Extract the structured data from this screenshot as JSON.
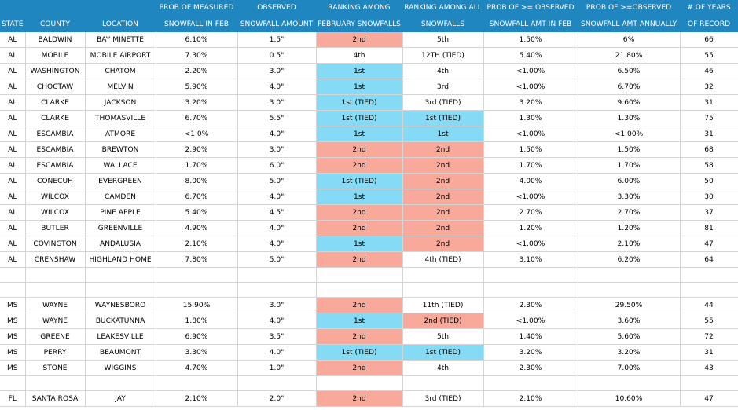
{
  "colors": {
    "header_bg": "#1f86c0",
    "header_text": "#ffffff",
    "salmon": "#f9a99a",
    "blue": "#85dbf6",
    "grid": "#d4d4d4"
  },
  "header_row1": [
    "",
    "",
    "",
    "PROB OF MEASURED",
    "OBSERVED",
    "RANKING AMONG",
    "RANKING AMONG ALL",
    "PROB OF >= OBSERVED",
    "PROB OF >=OBSERVED",
    "# OF YEARS"
  ],
  "header_row2": [
    "STATE",
    "COUNTY",
    "LOCATION",
    "SNOWFALL IN FEB",
    "SNOWFALL AMOUNT",
    "FEBRUARY SNOWFALLS",
    "SNOWFALLS",
    "SNOWFALL AMT IN FEB",
    "SNOWFALL AMT ANNUALLY",
    "OF RECORD"
  ],
  "rows": [
    {
      "blank": false,
      "cells": [
        "AL",
        "BALDWIN",
        "BAY MINETTE",
        "6.10%",
        "1.5\"",
        "2nd",
        "5th",
        "1.50%",
        "6%",
        "66"
      ],
      "feb_hl": "salmon",
      "all_hl": ""
    },
    {
      "blank": false,
      "cells": [
        "AL",
        "MOBILE",
        "MOBILE AIRPORT",
        "7.30%",
        "0.5\"",
        "4th",
        "12TH (TIED)",
        "5.40%",
        "21.80%",
        "55"
      ],
      "feb_hl": "",
      "all_hl": ""
    },
    {
      "blank": false,
      "cells": [
        "AL",
        "WASHINGTON",
        "CHATOM",
        "2.20%",
        "3.0\"",
        "1st",
        "4th",
        "<1.00%",
        "6.50%",
        "46"
      ],
      "feb_hl": "blue",
      "all_hl": ""
    },
    {
      "blank": false,
      "cells": [
        "AL",
        "CHOCTAW",
        "MELVIN",
        "5.90%",
        "4.0\"",
        "1st",
        "3rd",
        "<1.00%",
        "6.70%",
        "32"
      ],
      "feb_hl": "blue",
      "all_hl": ""
    },
    {
      "blank": false,
      "cells": [
        "AL",
        "CLARKE",
        "JACKSON",
        "3.20%",
        "3.0\"",
        "1st (TIED)",
        "3rd (TIED)",
        "3.20%",
        "9.60%",
        "31"
      ],
      "feb_hl": "blue",
      "all_hl": ""
    },
    {
      "blank": false,
      "cells": [
        "AL",
        "CLARKE",
        "THOMASVILLE",
        "6.70%",
        "5.5\"",
        "1st (TIED)",
        "1st (TIED)",
        "1.30%",
        "1.30%",
        "75"
      ],
      "feb_hl": "blue",
      "all_hl": "blue"
    },
    {
      "blank": false,
      "cells": [
        "AL",
        "ESCAMBIA",
        "ATMORE",
        "<1.0%",
        "4.0\"",
        "1st",
        "1st",
        "<1.00%",
        "<1.00%",
        "31"
      ],
      "feb_hl": "blue",
      "all_hl": "blue"
    },
    {
      "blank": false,
      "cells": [
        "AL",
        "ESCAMBIA",
        "BREWTON",
        "2.90%",
        "3.0\"",
        "2nd",
        "2nd",
        "1.50%",
        "1.50%",
        "68"
      ],
      "feb_hl": "salmon",
      "all_hl": "salmon"
    },
    {
      "blank": false,
      "cells": [
        "AL",
        "ESCAMBIA",
        "WALLACE",
        "1.70%",
        "6.0\"",
        "2nd",
        "2nd",
        "1.70%",
        "1.70%",
        "58"
      ],
      "feb_hl": "salmon",
      "all_hl": "salmon"
    },
    {
      "blank": false,
      "cells": [
        "AL",
        "CONECUH",
        "EVERGREEN",
        "8.00%",
        "5.0\"",
        "1st (TIED)",
        "2nd",
        "4.00%",
        "6.00%",
        "50"
      ],
      "feb_hl": "blue",
      "all_hl": "salmon"
    },
    {
      "blank": false,
      "cells": [
        "AL",
        "WILCOX",
        "CAMDEN",
        "6.70%",
        "4.0\"",
        "1st",
        "2nd",
        "<1.00%",
        "3.30%",
        "30"
      ],
      "feb_hl": "blue",
      "all_hl": "salmon"
    },
    {
      "blank": false,
      "cells": [
        "AL",
        "WILCOX",
        "PINE APPLE",
        "5.40%",
        "4.5\"",
        "2nd",
        "2nd",
        "2.70%",
        "2.70%",
        "37"
      ],
      "feb_hl": "salmon",
      "all_hl": "salmon"
    },
    {
      "blank": false,
      "cells": [
        "AL",
        "BUTLER",
        "GREENVILLE",
        "4.90%",
        "4.0\"",
        "2nd",
        "2nd",
        "1.20%",
        "1.20%",
        "81"
      ],
      "feb_hl": "salmon",
      "all_hl": "salmon"
    },
    {
      "blank": false,
      "cells": [
        "AL",
        "COVINGTON",
        "ANDALUSIA",
        "2.10%",
        "4.0\"",
        "1st",
        "2nd",
        "<1.00%",
        "2.10%",
        "47"
      ],
      "feb_hl": "blue",
      "all_hl": "salmon"
    },
    {
      "blank": false,
      "cells": [
        "AL",
        "CRENSHAW",
        "HIGHLAND HOME",
        "7.80%",
        "5.0\"",
        "2nd",
        "4th (TIED)",
        "3.10%",
        "6.20%",
        "64"
      ],
      "feb_hl": "salmon",
      "all_hl": ""
    },
    {
      "blank": true,
      "cells": [
        "",
        "",
        "",
        "",
        "",
        "",
        "",
        "",
        "",
        ""
      ],
      "feb_hl": "",
      "all_hl": ""
    },
    {
      "blank": true,
      "cells": [
        "",
        "",
        "",
        "",
        "",
        "",
        "",
        "",
        "",
        ""
      ],
      "feb_hl": "",
      "all_hl": ""
    },
    {
      "blank": false,
      "cells": [
        "MS",
        "WAYNE",
        "WAYNESBORO",
        "15.90%",
        "3.0\"",
        "2nd",
        "11th (TIED)",
        "2.30%",
        "29.50%",
        "44"
      ],
      "feb_hl": "salmon",
      "all_hl": ""
    },
    {
      "blank": false,
      "cells": [
        "MS",
        "WAYNE",
        "BUCKATUNNA",
        "1.80%",
        "4.0\"",
        "1st",
        "2nd (TIED)",
        "<1.00%",
        "3.60%",
        "55"
      ],
      "feb_hl": "blue",
      "all_hl": "salmon"
    },
    {
      "blank": false,
      "cells": [
        "MS",
        "GREENE",
        "LEAKESVILLE",
        "6.90%",
        "3.5\"",
        "2nd",
        "5th",
        "1.40%",
        "5.60%",
        "72"
      ],
      "feb_hl": "salmon",
      "all_hl": ""
    },
    {
      "blank": false,
      "cells": [
        "MS",
        "PERRY",
        "BEAUMONT",
        "3.30%",
        "4.0\"",
        "1st (TIED)",
        "1st (TIED)",
        "3.20%",
        "3.20%",
        "31"
      ],
      "feb_hl": "blue",
      "all_hl": "blue"
    },
    {
      "blank": false,
      "cells": [
        "MS",
        "STONE",
        "WIGGINS",
        "4.70%",
        "1.0\"",
        "2nd",
        "4th",
        "2.30%",
        "7.00%",
        "43"
      ],
      "feb_hl": "salmon",
      "all_hl": ""
    },
    {
      "blank": true,
      "cells": [
        "",
        "",
        "",
        "",
        "",
        "",
        "",
        "",
        "",
        ""
      ],
      "feb_hl": "",
      "all_hl": ""
    },
    {
      "blank": false,
      "cells": [
        "FL",
        "SANTA ROSA",
        "JAY",
        "2.10%",
        "2.0\"",
        "2nd",
        "3rd (TIED)",
        "2.10%",
        "10.60%",
        "47"
      ],
      "feb_hl": "salmon",
      "all_hl": ""
    }
  ]
}
